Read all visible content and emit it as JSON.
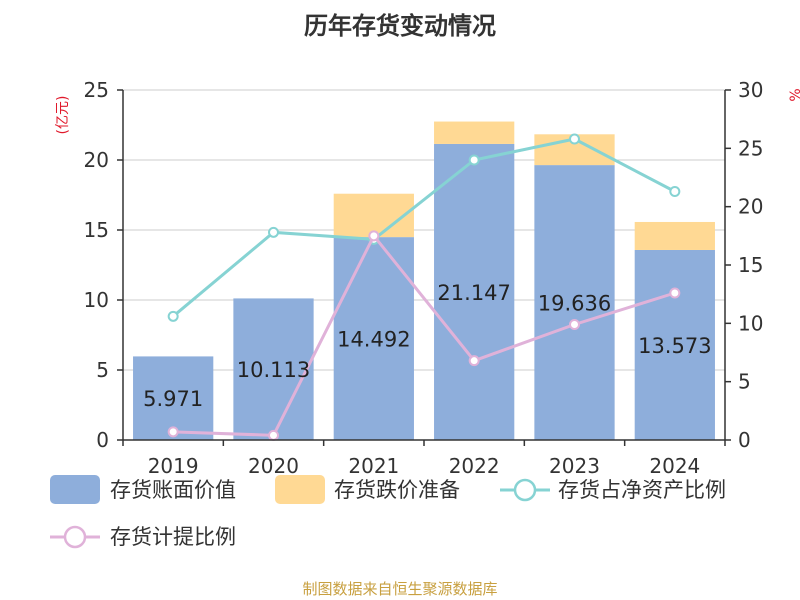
{
  "title": "历年存货变动情况",
  "source": "制图数据来自恒生聚源数据库",
  "y_left_unit": "(亿元)",
  "colors": {
    "book_value": "#8eaedb",
    "reserve": "#ffd994",
    "net_asset_ratio": "#86d3d3",
    "provision_ratio": "#e0b2d9",
    "axis": "#333333",
    "grid": "#cccccc"
  },
  "legend": {
    "book_value": "存货账面价值",
    "reserve": "存货跌价准备",
    "net_asset_ratio": "存货占净资产比例",
    "provision_ratio": "存货计提比例"
  },
  "chart_data": {
    "type": "bar",
    "categories": [
      "2019",
      "2020",
      "2021",
      "2022",
      "2023",
      "2024"
    ],
    "series": [
      {
        "name": "存货账面价值",
        "type": "bar",
        "axis": "left",
        "stack": "total",
        "values": [
          5.971,
          10.113,
          14.492,
          21.147,
          19.636,
          13.573
        ],
        "labels": [
          "5.971",
          "10.113",
          "14.492",
          "21.147",
          "19.636",
          "13.573"
        ]
      },
      {
        "name": "存货跌价准备",
        "type": "bar",
        "axis": "left",
        "stack": "total",
        "values": [
          0,
          0,
          3.1,
          1.6,
          2.2,
          2.0
        ]
      },
      {
        "name": "存货占净资产比例",
        "type": "line",
        "axis": "right",
        "values": [
          10.6,
          17.8,
          17.2,
          24.0,
          25.8,
          21.3
        ]
      },
      {
        "name": "存货计提比例",
        "type": "line",
        "axis": "right",
        "values": [
          0.7,
          0.4,
          17.5,
          6.8,
          9.9,
          12.6
        ]
      }
    ],
    "y_left": {
      "min": 0,
      "max": 25,
      "ticks": [
        "0",
        "5",
        "10",
        "15",
        "20",
        "25"
      ]
    },
    "y_right": {
      "min": 0,
      "max": 30,
      "ticks": [
        "0",
        "5",
        "10",
        "15",
        "20",
        "25",
        "30"
      ]
    },
    "grid": true,
    "legend_position": "bottom"
  }
}
